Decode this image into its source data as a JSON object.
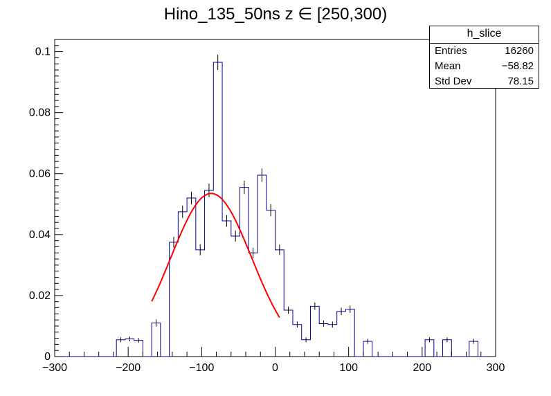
{
  "chart_data": {
    "type": "histogram",
    "title": "Hino_135_50ns z  ∈ [250,300)",
    "xlim": [
      -300,
      300
    ],
    "ylim": [
      0,
      0.104
    ],
    "x_ticks": [
      -300,
      -200,
      -100,
      0,
      100,
      200,
      300
    ],
    "x_tick_labels": [
      "−300",
      "−200",
      "−100",
      "0",
      "100",
      "200",
      "300"
    ],
    "y_ticks": [
      0,
      0.02,
      0.04,
      0.06,
      0.08,
      0.1
    ],
    "y_tick_labels": [
      "0",
      "0.02",
      "0.04",
      "0.06",
      "0.08",
      "0.1"
    ],
    "grid": false,
    "histogram": {
      "bin_start": -300,
      "bin_width": 12,
      "values": [
        0,
        0,
        0,
        0,
        0,
        0,
        0,
        0.0055,
        0.0058,
        0.0053,
        0,
        0.011,
        0,
        0.0375,
        0.0475,
        0.052,
        0.035,
        0.0545,
        0.0965,
        0.0445,
        0.0395,
        0.0555,
        0.034,
        0.0595,
        0.048,
        0.035,
        0.0152,
        0.0105,
        0.0055,
        0.0165,
        0.0108,
        0.0105,
        0.0148,
        0.0155,
        0,
        0.005,
        0,
        0,
        0,
        0,
        0,
        0,
        0.0055,
        0,
        0.0055,
        0,
        0,
        0.005,
        0
      ],
      "errors": [
        0,
        0,
        0,
        0,
        0,
        0,
        0,
        0.0008,
        0.0008,
        0.0008,
        0,
        0.0012,
        0,
        0.0018,
        0.002,
        0.0021,
        0.0018,
        0.0022,
        0.0025,
        0.0019,
        0.0018,
        0.0022,
        0.0017,
        0.0022,
        0.002,
        0.0017,
        0.0012,
        0.001,
        0.0008,
        0.0012,
        0.001,
        0.001,
        0.0012,
        0.0012,
        0,
        0.0008,
        0,
        0,
        0,
        0,
        0,
        0,
        0.0008,
        0,
        0.0008,
        0,
        0,
        0.0008,
        0
      ],
      "color": "#000099"
    },
    "fit": {
      "function": "gaussian",
      "constant": 0.0535,
      "mean": -87,
      "sigma": 55,
      "x_range": [
        -168,
        6
      ],
      "color": "#ff0000"
    },
    "stats": {
      "name": "h_slice",
      "rows": [
        {
          "label": "Entries",
          "value": "16260"
        },
        {
          "label": "Mean",
          "value": "−58.82"
        },
        {
          "label": "Std Dev",
          "value": "78.15"
        }
      ]
    }
  }
}
